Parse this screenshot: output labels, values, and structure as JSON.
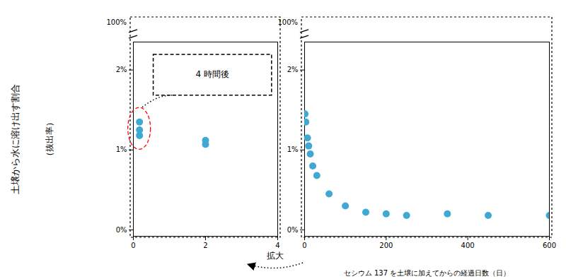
{
  "chart_data": [
    {
      "type": "scatter",
      "x": [
        0.17,
        0.17,
        0.17,
        2.0,
        2.0
      ],
      "values": [
        1.35,
        1.25,
        1.18,
        1.12,
        1.07
      ],
      "color": "#3fa9d4",
      "xlim": [
        0,
        4
      ],
      "xticks": [
        0,
        2,
        4
      ],
      "ylim": [
        -0.08,
        2.35
      ],
      "yticks": [
        {
          "value": 0,
          "label": "0%"
        },
        {
          "value": 1,
          "label": "1%"
        },
        {
          "value": 2,
          "label": "2%"
        }
      ],
      "ylabel": [
        "土壌から水に溶け出す割合",
        "（抜出率）"
      ],
      "annotations": [
        "100%",
        "4 時間後",
        "拡大"
      ]
    },
    {
      "type": "scatter",
      "x": [
        1,
        3,
        7,
        10,
        14,
        20,
        30,
        60,
        100,
        150,
        200,
        250,
        350,
        450,
        600
      ],
      "values": [
        1.45,
        1.35,
        1.15,
        1.05,
        0.95,
        0.8,
        0.68,
        0.45,
        0.3,
        0.22,
        0.2,
        0.18,
        0.2,
        0.18,
        0.18
      ],
      "color": "#3fa9d4",
      "xlim": [
        0,
        600
      ],
      "xticks": [
        0,
        200,
        400,
        600
      ],
      "ylim": [
        -0.08,
        2.35
      ],
      "yticks": [
        {
          "value": 0,
          "label": "0%"
        },
        {
          "value": 1,
          "label": "1%"
        },
        {
          "value": 2,
          "label": "2%"
        }
      ],
      "xlabel": "セシウム 137 を土壌に加えてからの経過日数（日）",
      "annotations": [
        "100%"
      ]
    }
  ]
}
